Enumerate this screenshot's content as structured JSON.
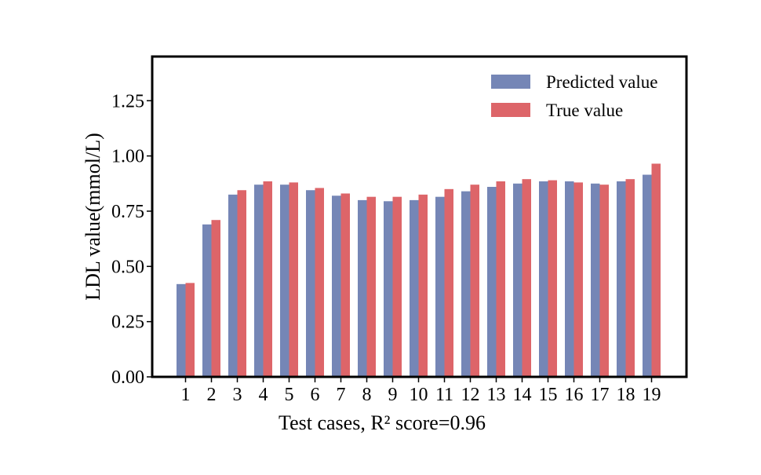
{
  "chart_data": {
    "type": "bar",
    "xlabel": "Test cases,  R² score=0.96",
    "ylabel": "LDL value(mmol/L)",
    "categories": [
      "1",
      "2",
      "3",
      "4",
      "5",
      "6",
      "7",
      "8",
      "9",
      "10",
      "11",
      "12",
      "13",
      "14",
      "15",
      "16",
      "17",
      "18",
      "19"
    ],
    "series": [
      {
        "name": "Predicted value",
        "color": "#7586b6",
        "values": [
          0.42,
          0.69,
          0.825,
          0.87,
          0.87,
          0.845,
          0.82,
          0.8,
          0.795,
          0.8,
          0.815,
          0.84,
          0.86,
          0.875,
          0.885,
          0.885,
          0.875,
          0.885,
          0.915
        ]
      },
      {
        "name": "True value",
        "color": "#dd6569",
        "values": [
          0.425,
          0.71,
          0.845,
          0.885,
          0.88,
          0.855,
          0.83,
          0.815,
          0.815,
          0.825,
          0.85,
          0.87,
          0.885,
          0.895,
          0.89,
          0.88,
          0.87,
          0.895,
          0.965
        ]
      }
    ],
    "ylim": [
      0,
      1.45
    ],
    "yticks": [
      0.0,
      0.25,
      0.5,
      0.75,
      1.0,
      1.25
    ],
    "ytick_labels": [
      "0.00",
      "0.25",
      "0.50",
      "0.75",
      "1.00",
      "1.25"
    ],
    "legend_position": "top-right",
    "grid": false
  }
}
